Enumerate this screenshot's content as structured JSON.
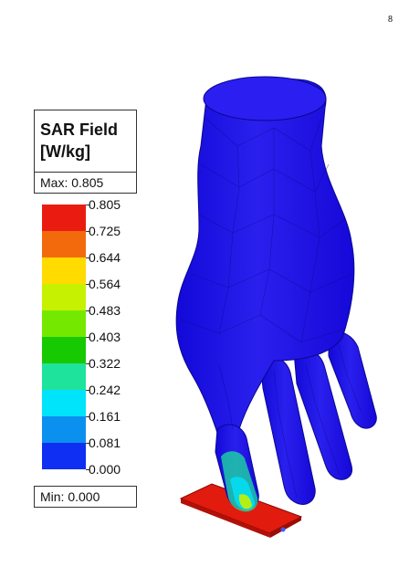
{
  "page_number": "8",
  "legend": {
    "title_line1": "SAR Field",
    "title_line2": "[W/kg]",
    "max_text": "Max: 0.805",
    "min_text": "Min: 0.000",
    "ticks": [
      "0.805",
      "0.725",
      "0.644",
      "0.564",
      "0.483",
      "0.403",
      "0.322",
      "0.242",
      "0.161",
      "0.081",
      "0.000"
    ],
    "colors": [
      "#ea1c12",
      "#f26a0c",
      "#ffdb00",
      "#c6f100",
      "#75e800",
      "#17c900",
      "#1ee39c",
      "#00e4fb",
      "#0c90ef",
      "#0f2ff2"
    ]
  },
  "figure": {
    "hand_color": "#1a10e6",
    "hot_plate_color": "#e11b0e"
  }
}
